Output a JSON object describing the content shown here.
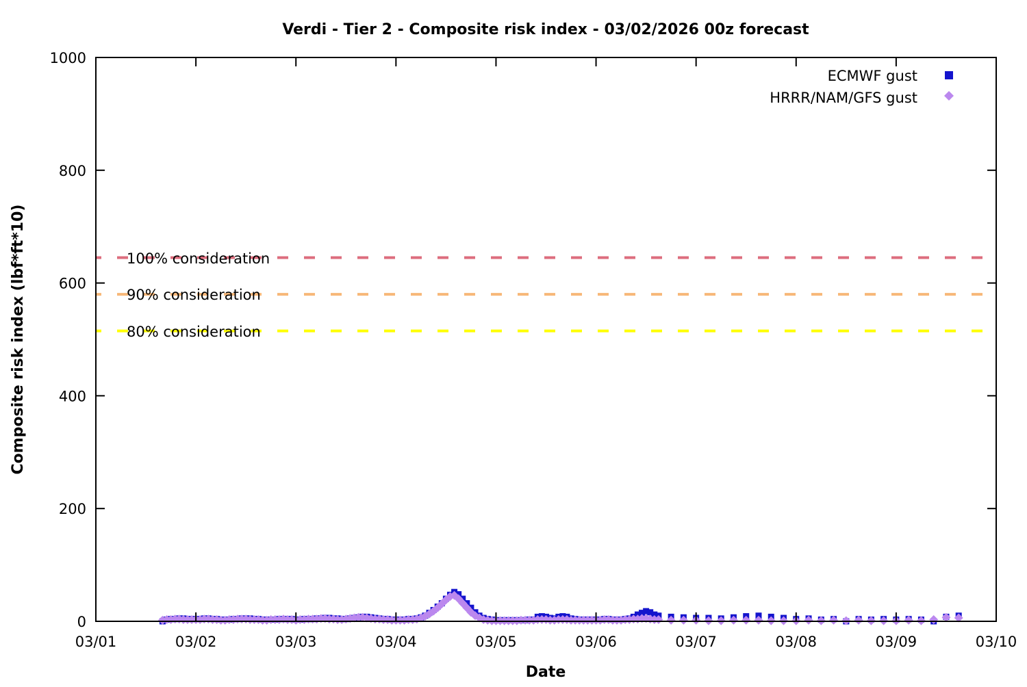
{
  "title": "Verdi - Tier 2 - Composite risk index - 03/02/2026 00z forecast",
  "chart_data": {
    "type": "scatter",
    "title": "Verdi - Tier 2 - Composite risk index - 03/02/2026 00z forecast",
    "xlabel": "Date",
    "ylabel": "Composite risk index (lbf*ft*10)",
    "x_unit": "days since 03/01 00:00",
    "xlim_days": [
      0,
      9
    ],
    "ylim": [
      0,
      1000
    ],
    "x_tick_labels": [
      "03/01",
      "03/02",
      "03/03",
      "03/04",
      "03/05",
      "03/06",
      "03/07",
      "03/08",
      "03/09",
      "03/10"
    ],
    "y_tick_values": [
      0,
      200,
      400,
      600,
      800,
      1000
    ],
    "grid": false,
    "legend_position": "top-right",
    "thresholds": [
      {
        "label": "100% consideration",
        "value": 645,
        "color": "#dd6d7e"
      },
      {
        "label": "90% consideration",
        "value": 580,
        "color": "#f7b778"
      },
      {
        "label": "80% consideration",
        "value": 515,
        "color": "#ffff00"
      }
    ],
    "series": [
      {
        "name": "ECMWF gust",
        "marker": "square",
        "color": "#1414cd",
        "segments": [
          {
            "start_day": 0.6667,
            "step_day": 0.0416667,
            "values": [
              0,
              3,
              4,
              4,
              5,
              5,
              4,
              4,
              4,
              4,
              5,
              5,
              4,
              4,
              3,
              3,
              3,
              4,
              4,
              5,
              5,
              5,
              4,
              4,
              3,
              3,
              3,
              3,
              4,
              4,
              4,
              4,
              3,
              3,
              4,
              4,
              4,
              5,
              5,
              6,
              6,
              5,
              5,
              4,
              4,
              5,
              6,
              7,
              8,
              8,
              7,
              6,
              5,
              4,
              4,
              3,
              3,
              3,
              3,
              4,
              4,
              5,
              7,
              10,
              15,
              20,
              26,
              32,
              40,
              47,
              52,
              48,
              40,
              32,
              24,
              16,
              10,
              6,
              4,
              3,
              2,
              2,
              2,
              2,
              2,
              2,
              2,
              2,
              3,
              3,
              8,
              9,
              8,
              6,
              5,
              8,
              9,
              8,
              5,
              4,
              3,
              3,
              3,
              3,
              3,
              3,
              4,
              4,
              3,
              3,
              3,
              4,
              5,
              8,
              12,
              15,
              18,
              16,
              12
            ]
          },
          {
            "start_day": 5.625,
            "step_day": 0.125,
            "values": [
              10,
              8,
              7,
              6,
              6,
              5,
              7,
              9,
              10,
              8,
              6,
              4,
              5,
              3,
              4,
              0,
              4,
              3,
              4,
              3,
              4,
              3,
              0,
              8,
              10
            ]
          }
        ]
      },
      {
        "name": "HRRR/NAM/GFS gust",
        "marker": "diamond",
        "color": "#bb88ee",
        "segments": [
          {
            "start_day": 0.6667,
            "step_day": 0.0416667,
            "values": [
              2,
              3,
              3,
              4,
              4,
              3,
              3,
              3,
              3,
              3,
              4,
              4,
              3,
              3,
              2,
              2,
              3,
              3,
              4,
              4,
              4,
              3,
              3,
              3,
              2,
              2,
              3,
              3,
              3,
              4,
              3,
              3,
              2,
              3,
              3,
              4,
              4,
              4,
              5,
              5,
              4,
              4,
              3,
              3,
              4,
              5,
              6,
              7,
              7,
              6,
              5,
              4,
              4,
              3,
              3,
              2,
              2,
              2,
              2,
              3,
              3,
              4,
              6,
              9,
              13,
              18,
              24,
              31,
              38,
              44,
              46,
              40,
              32,
              24,
              16,
              10,
              6,
              3,
              2,
              1,
              1,
              1,
              1,
              1,
              1,
              1,
              2,
              2,
              2,
              2,
              3,
              3,
              3,
              2,
              2,
              3,
              3,
              3,
              2,
              2,
              2,
              2,
              2,
              2,
              2,
              2,
              3,
              3,
              2,
              2,
              2,
              3,
              3,
              4,
              4,
              5,
              5,
              4,
              3
            ]
          },
          {
            "start_day": 5.625,
            "step_day": 0.125,
            "values": [
              3,
              2,
              2,
              2,
              1,
              1,
              2,
              2,
              2,
              1,
              1,
              1,
              2,
              1,
              2,
              1,
              2,
              1,
              1,
              1,
              2,
              1,
              3,
              7,
              6
            ]
          }
        ]
      }
    ]
  }
}
